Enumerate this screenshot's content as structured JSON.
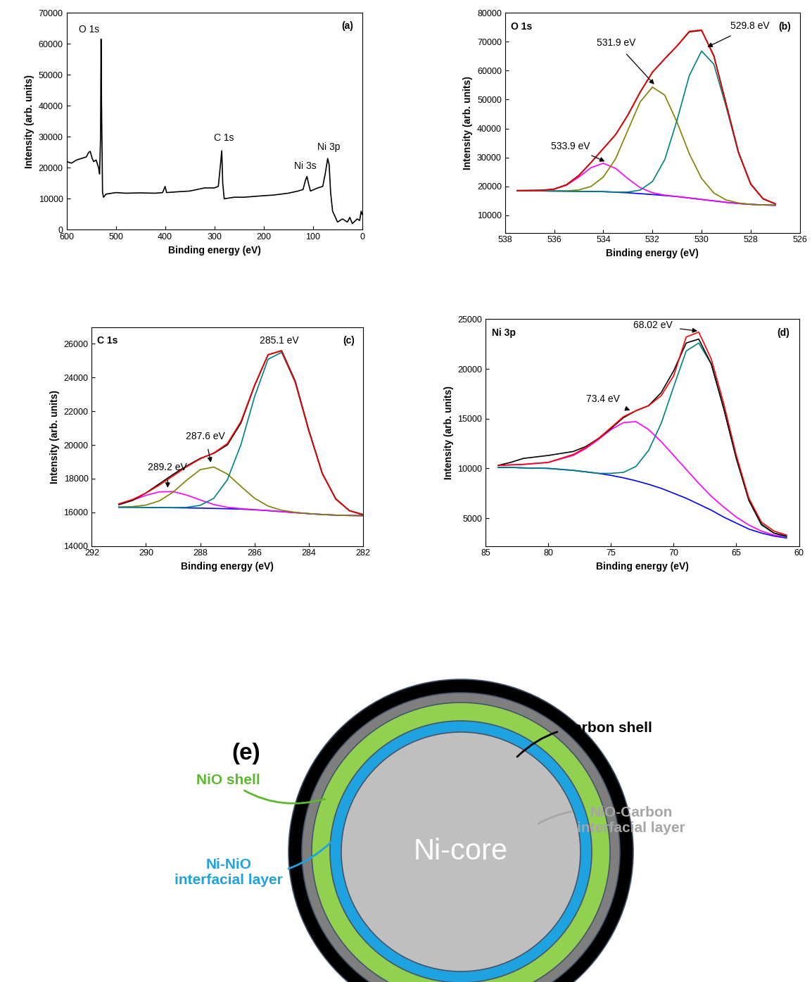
{
  "chart_data": [
    {
      "type": "line",
      "panel_label": "(a)",
      "x_label": "Binding energy (eV)",
      "y_label": "Intensity (arb. units)",
      "xlim": [
        600,
        0
      ],
      "xticks": [
        600,
        500,
        400,
        300,
        200,
        100,
        0
      ],
      "ylim": [
        0,
        70000
      ],
      "yticks": [
        0,
        10000,
        20000,
        30000,
        40000,
        50000,
        60000,
        70000
      ],
      "x": [
        600,
        590,
        580,
        570,
        560,
        555,
        552,
        548,
        545,
        540,
        535,
        533,
        531,
        530,
        529,
        527,
        525,
        520,
        500,
        480,
        450,
        420,
        405,
        400,
        397,
        380,
        350,
        320,
        300,
        292,
        287,
        285,
        283,
        280,
        260,
        240,
        200,
        180,
        150,
        130,
        120,
        115,
        112,
        109,
        105,
        90,
        80,
        75,
        70,
        67,
        64,
        60,
        50,
        40,
        30,
        25,
        20,
        10,
        5,
        2,
        0
      ],
      "series": [
        {
          "color": "#000000",
          "values": [
            22000,
            21500,
            22500,
            23000,
            23500,
            25000,
            25300,
            23000,
            22000,
            22500,
            20000,
            18000,
            30000,
            61500,
            40000,
            12000,
            10500,
            11500,
            12000,
            11800,
            11900,
            11800,
            12000,
            14000,
            12000,
            12200,
            12500,
            13500,
            13500,
            14000,
            22000,
            25500,
            15000,
            10000,
            10500,
            10500,
            11000,
            11200,
            11800,
            12500,
            13000,
            16000,
            17200,
            15000,
            12500,
            13500,
            14000,
            18000,
            23000,
            21000,
            12000,
            6000,
            2500,
            3500,
            2500,
            4000,
            2000,
            3500,
            3000,
            6000,
            5000
          ]
        }
      ],
      "annotations": [
        {
          "text": "O 1s",
          "x": 555,
          "y": 63000
        },
        {
          "text": "C 1s",
          "x": 280,
          "y": 28000
        },
        {
          "text": "Ni 3s",
          "x": 115,
          "y": 19000
        },
        {
          "text": "Ni 3p",
          "x": 68,
          "y": 25000
        }
      ]
    },
    {
      "type": "line",
      "panel_label": "(b)",
      "title": "O 1s",
      "x_label": "Binding energy (eV)",
      "y_label": "Intensity (arb. units)",
      "xlim": [
        538,
        526
      ],
      "xticks": [
        538,
        536,
        534,
        532,
        530,
        528,
        526
      ],
      "ylim": [
        4000,
        80000
      ],
      "yticks": [
        10000,
        20000,
        30000,
        40000,
        50000,
        60000,
        70000,
        80000
      ],
      "x": [
        537.5,
        537,
        536.5,
        536,
        535.5,
        535,
        534.5,
        534,
        533.5,
        533,
        532.5,
        532,
        531.5,
        531,
        530.5,
        530,
        529.5,
        529,
        528.5,
        528,
        527.5,
        527
      ],
      "series": [
        {
          "color": "#0000ff",
          "values": [
            18500,
            18500,
            18450,
            18400,
            18350,
            18300,
            18250,
            18200,
            18000,
            17800,
            17500,
            17200,
            16850,
            16500,
            16000,
            15500,
            15000,
            14500,
            14100,
            13800,
            13600,
            13500
          ]
        },
        {
          "color": "#ff00ff",
          "values": [
            18500,
            18520,
            18577,
            19017,
            20408,
            23200,
            26482,
            28000,
            26232,
            22700,
            19558,
            17817,
            16977,
            16520,
            16000,
            15500,
            15000,
            14500,
            14100,
            13800,
            13600,
            13500
          ]
        },
        {
          "color": "#808000",
          "values": [
            18500,
            18500,
            18450,
            18419,
            18462,
            18785,
            20003,
            23236,
            29563,
            39434,
            49205,
            54314,
            51539,
            42237,
            31293,
            22774,
            17723,
            15321,
            14287,
            13837,
            13600,
            13500
          ]
        },
        {
          "color": "#008080",
          "values": [
            18500,
            18500,
            18450,
            18400,
            18350,
            18300,
            18250,
            18200,
            18041,
            18058,
            18738,
            21689,
            29234,
            42816,
            58312,
            66790,
            62214,
            47524,
            31644,
            20766,
            15716,
            13990
          ]
        },
        {
          "color": "#000000",
          "values": [
            18600,
            18650,
            18700,
            19100,
            20600,
            23800,
            28300,
            33100,
            37900,
            44700,
            52600,
            59500,
            64100,
            68500,
            73400,
            73900,
            65200,
            48600,
            31900,
            20900,
            15800,
            14000
          ]
        },
        {
          "color": "#ff0000",
          "values": [
            18500,
            18520,
            18577,
            19036,
            20520,
            23685,
            28235,
            33036,
            37836,
            44592,
            52501,
            59420,
            64050,
            68573,
            73605,
            74064,
            64937,
            48345,
            31831,
            20803,
            15716,
            13990
          ]
        }
      ],
      "annotations": [
        {
          "text": "533.9 eV",
          "x": 533.9,
          "y": 28500
        },
        {
          "text": "531.9 eV",
          "x": 531.9,
          "y": 55000
        },
        {
          "text": "529.8 eV",
          "x": 529.8,
          "y": 68000
        }
      ]
    },
    {
      "type": "line",
      "panel_label": "(c)",
      "title": "C 1s",
      "x_label": "Binding energy (eV)",
      "y_label": "Intensity (arb. units)",
      "xlim": [
        292,
        282
      ],
      "xticks": [
        292,
        290,
        288,
        286,
        284,
        282
      ],
      "ylim": [
        14000,
        27000
      ],
      "yticks": [
        14000,
        16000,
        18000,
        20000,
        22000,
        24000,
        26000
      ],
      "x": [
        291,
        290.5,
        290,
        289.5,
        289,
        288.5,
        288,
        287.5,
        287,
        286.5,
        286,
        285.5,
        285,
        284.5,
        284,
        283.5,
        283,
        282.5,
        282
      ],
      "series": [
        {
          "color": "#0000ff",
          "values": [
            16300,
            16300,
            16290,
            16280,
            16270,
            16260,
            16250,
            16230,
            16210,
            16190,
            16150,
            16100,
            16040,
            15980,
            15920,
            15870,
            15830,
            15810,
            15800
          ]
        },
        {
          "color": "#ff00ff",
          "values": [
            16494,
            16721,
            17005,
            17217,
            17230,
            17024,
            16730,
            16461,
            16297,
            16215,
            16156,
            16100,
            16040,
            15980,
            15920,
            15870,
            15830,
            15810,
            15800
          ]
        },
        {
          "color": "#808000",
          "values": [
            16307,
            16337,
            16428,
            16685,
            17196,
            17907,
            18530,
            18688,
            18272,
            17539,
            16837,
            16372,
            16124,
            16000,
            15924,
            15870,
            15830,
            15810,
            15800
          ]
        },
        {
          "color": "#008080",
          "values": [
            16300,
            16300,
            16290,
            16280,
            16276,
            16295,
            16413,
            16832,
            17931,
            20014,
            22842,
            25086,
            25495,
            23724,
            20853,
            18317,
            16776,
            16097,
            15867
          ]
        },
        {
          "color": "#000000",
          "values": [
            16450,
            16700,
            17150,
            17700,
            18250,
            18750,
            19200,
            19500,
            20000,
            21300,
            23500,
            25350,
            25600,
            23800,
            20900,
            18300,
            16800,
            16100,
            15850
          ]
        },
        {
          "color": "#ff0000",
          "values": [
            16501,
            16758,
            17143,
            17622,
            18162,
            18706,
            19173,
            19521,
            20080,
            21388,
            23535,
            25358,
            25579,
            23744,
            20857,
            18317,
            16776,
            16097,
            15867
          ]
        }
      ],
      "annotations": [
        {
          "text": "289.2 eV",
          "x": 289.2,
          "y": 17400
        },
        {
          "text": "287.6 eV",
          "x": 287.6,
          "y": 18900
        },
        {
          "text": "285.1 eV",
          "x": 285.1,
          "y": 25900
        }
      ]
    },
    {
      "type": "line",
      "panel_label": "(d)",
      "title": "Ni 3p",
      "x_label": "Binding energy (eV)",
      "y_label": "Intensity (arb. units)",
      "xlim": [
        85,
        60
      ],
      "xticks": [
        85,
        80,
        75,
        70,
        65,
        60
      ],
      "ylim": [
        2200,
        25000
      ],
      "yticks": [
        5000,
        10000,
        15000,
        20000,
        25000
      ],
      "x": [
        84,
        83,
        82,
        80,
        78,
        77,
        76,
        75,
        74,
        73,
        72,
        71,
        70,
        69,
        68,
        67,
        66,
        65,
        64,
        63,
        62,
        61
      ],
      "series": [
        {
          "color": "#0000ff",
          "values": [
            10100,
            10100,
            10050,
            10000,
            9800,
            9650,
            9500,
            9300,
            9050,
            8750,
            8400,
            8000,
            7500,
            7000,
            6400,
            5800,
            5100,
            4500,
            3900,
            3500,
            3200,
            3000
          ]
        },
        {
          "color": "#ff00ff",
          "values": [
            10300,
            10350,
            10400,
            10600,
            11300,
            12000,
            12900,
            13900,
            14600,
            14700,
            13900,
            12700,
            11300,
            9900,
            8500,
            7200,
            6100,
            5100,
            4300,
            3700,
            3300,
            3100
          ]
        },
        {
          "color": "#008080",
          "values": [
            10100,
            10100,
            10050,
            10000,
            9800,
            9650,
            9500,
            9500,
            9600,
            10200,
            11800,
            14500,
            18200,
            21800,
            22600,
            20500,
            16000,
            11000,
            6800,
            4300,
            3500,
            3100
          ]
        },
        {
          "color": "#000000",
          "values": [
            10300,
            10600,
            11000,
            11300,
            11700,
            12200,
            13000,
            14000,
            15100,
            15800,
            16300,
            17600,
            19800,
            22600,
            23000,
            20500,
            16000,
            11000,
            6800,
            4400,
            3500,
            3200
          ]
        },
        {
          "color": "#ff0000",
          "values": [
            10300,
            10350,
            10400,
            10600,
            11400,
            12100,
            13000,
            14100,
            15200,
            15800,
            16300,
            17300,
            19300,
            23200,
            23700,
            21000,
            16500,
            11300,
            7000,
            4600,
            3700,
            3300
          ]
        }
      ],
      "annotations": [
        {
          "text": "68.02 eV",
          "x": 68.02,
          "y": 23800
        },
        {
          "text": "73.4 eV",
          "x": 73.4,
          "y": 15800
        }
      ]
    }
  ],
  "diagram": {
    "label": "(e)",
    "core": "Ni-core",
    "labels": [
      "Ni-NiO\ninterfacial layer",
      "NiO shell",
      "NiO-Carbon\ninterfacial layer",
      "Carbon shell"
    ]
  }
}
